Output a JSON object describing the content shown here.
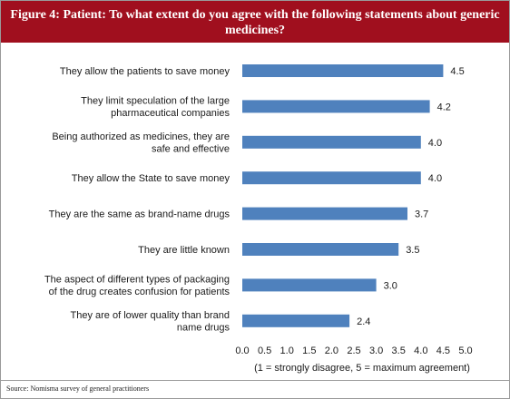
{
  "figure": {
    "title": "Figure 4: Patient: To what extent do you agree with the following statements about generic medicines?",
    "source": "Source: Nomisma survey of general practitioners"
  },
  "colors": {
    "header_bg": "#a00f1e",
    "bar": "#4f81bd"
  },
  "chart_data": {
    "type": "bar",
    "orientation": "horizontal",
    "categories": [
      [
        "They allow the patients to save money"
      ],
      [
        "They limit speculation of the large",
        "pharmaceutical companies"
      ],
      [
        "Being authorized as medicines, they are",
        "safe and effective"
      ],
      [
        "They allow the State to save money"
      ],
      [
        "They are the same as brand-name drugs"
      ],
      [
        "They are little known"
      ],
      [
        "The aspect of different types of packaging",
        "of the drug creates confusion for patients"
      ],
      [
        "They are of lower quality than brand",
        "name drugs"
      ]
    ],
    "values": [
      4.5,
      4.2,
      4.0,
      4.0,
      3.7,
      3.5,
      3.0,
      2.4
    ],
    "value_labels": [
      "4.5",
      "4.2",
      "4.0",
      "4.0",
      "3.7",
      "3.5",
      "3.0",
      "2.4"
    ],
    "xlim": [
      0,
      5
    ],
    "xticks": [
      "0.0",
      "0.5",
      "1.0",
      "1.5",
      "2.0",
      "2.5",
      "3.0",
      "3.5",
      "4.0",
      "4.5",
      "5.0"
    ],
    "xlabel": "(1 = strongly disagree, 5 = maximum agreement)",
    "grid": false,
    "legend": "none"
  }
}
